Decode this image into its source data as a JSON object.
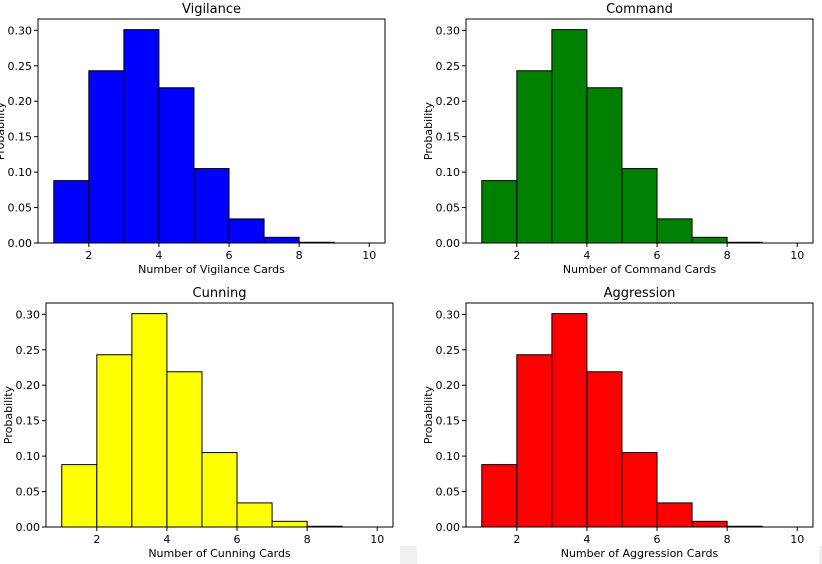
{
  "chart_data": [
    {
      "type": "bar",
      "title": "Vigilance",
      "xlabel": "Number of Vigilance Cards",
      "ylabel": "Probability",
      "color": "#0000ff",
      "edgecolor": "#000000",
      "bin_edges": [
        1,
        2,
        3,
        4,
        5,
        6,
        7,
        8,
        9,
        10
      ],
      "values": [
        0.088,
        0.243,
        0.301,
        0.219,
        0.105,
        0.034,
        0.008,
        0.001,
        0.0
      ],
      "xlim": [
        0.55,
        10.45
      ],
      "ylim": [
        0,
        0.316
      ],
      "xticks": [
        2,
        4,
        6,
        8,
        10
      ],
      "xtick_labels": [
        "2",
        "4",
        "6",
        "8",
        "10"
      ],
      "yticks": [
        0,
        0.05,
        0.1,
        0.15,
        0.2,
        0.25,
        0.3
      ],
      "ytick_labels": [
        "0.00",
        "0.05",
        "0.10",
        "0.15",
        "0.20",
        "0.25",
        "0.30"
      ],
      "grid": false
    },
    {
      "type": "bar",
      "title": "Command",
      "xlabel": "Number of Command Cards",
      "ylabel": "Probability",
      "color": "#008000",
      "edgecolor": "#000000",
      "bin_edges": [
        1,
        2,
        3,
        4,
        5,
        6,
        7,
        8,
        9,
        10
      ],
      "values": [
        0.088,
        0.243,
        0.301,
        0.219,
        0.105,
        0.034,
        0.008,
        0.001,
        0.0
      ],
      "xlim": [
        0.55,
        10.45
      ],
      "ylim": [
        0,
        0.316
      ],
      "xticks": [
        2,
        4,
        6,
        8,
        10
      ],
      "xtick_labels": [
        "2",
        "4",
        "6",
        "8",
        "10"
      ],
      "yticks": [
        0,
        0.05,
        0.1,
        0.15,
        0.2,
        0.25,
        0.3
      ],
      "ytick_labels": [
        "0.00",
        "0.05",
        "0.10",
        "0.15",
        "0.20",
        "0.25",
        "0.30"
      ],
      "grid": false
    },
    {
      "type": "bar",
      "title": "Cunning",
      "xlabel": "Number of Cunning Cards",
      "ylabel": "Probability",
      "color": "#ffff00",
      "edgecolor": "#000000",
      "bin_edges": [
        1,
        2,
        3,
        4,
        5,
        6,
        7,
        8,
        9,
        10
      ],
      "values": [
        0.088,
        0.243,
        0.301,
        0.219,
        0.105,
        0.034,
        0.008,
        0.001,
        0.0
      ],
      "xlim": [
        0.55,
        10.45
      ],
      "ylim": [
        0,
        0.316
      ],
      "xticks": [
        2,
        4,
        6,
        8,
        10
      ],
      "xtick_labels": [
        "2",
        "4",
        "6",
        "8",
        "10"
      ],
      "yticks": [
        0,
        0.05,
        0.1,
        0.15,
        0.2,
        0.25,
        0.3
      ],
      "ytick_labels": [
        "0.00",
        "0.05",
        "0.10",
        "0.15",
        "0.20",
        "0.25",
        "0.30"
      ],
      "grid": false
    },
    {
      "type": "bar",
      "title": "Aggression",
      "xlabel": "Number of Aggression Cards",
      "ylabel": "Probability",
      "color": "#ff0000",
      "edgecolor": "#000000",
      "bin_edges": [
        1,
        2,
        3,
        4,
        5,
        6,
        7,
        8,
        9,
        10
      ],
      "values": [
        0.088,
        0.243,
        0.301,
        0.219,
        0.105,
        0.034,
        0.008,
        0.001,
        0.0
      ],
      "xlim": [
        0.55,
        10.45
      ],
      "ylim": [
        0,
        0.316
      ],
      "xticks": [
        2,
        4,
        6,
        8,
        10
      ],
      "xtick_labels": [
        "2",
        "4",
        "6",
        "8",
        "10"
      ],
      "yticks": [
        0,
        0.05,
        0.1,
        0.15,
        0.2,
        0.25,
        0.3
      ],
      "ytick_labels": [
        "0.00",
        "0.05",
        "0.10",
        "0.15",
        "0.20",
        "0.25",
        "0.30"
      ],
      "grid": false
    }
  ]
}
